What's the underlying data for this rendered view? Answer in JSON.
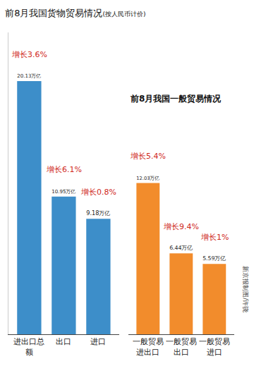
{
  "chart_data": [
    {
      "type": "bar",
      "title": "前8月我国货物贸易情况",
      "subtitle": "(按人民币计价)",
      "categories": [
        "进出口总额",
        "出口",
        "进口"
      ],
      "values": [
        20.13,
        10.95,
        9.18
      ],
      "value_labels": [
        "20.13万亿",
        "10.95万亿",
        "9.18万亿"
      ],
      "annotations": [
        "增长3.6%",
        "增长6.1%",
        "增长0.8%"
      ],
      "color": "#3d8ec9",
      "ylim": [
        0,
        24
      ],
      "data_labels": true,
      "tick_labels": "x",
      "grid": false
    },
    {
      "type": "bar",
      "title": "前8月我国一般贸易情况",
      "categories": [
        "一般贸易进出口",
        "一般贸易出口",
        "一般贸易进口"
      ],
      "values": [
        12.03,
        6.44,
        5.59
      ],
      "value_labels": [
        "12.03万亿",
        "6.44万亿",
        "5.59万亿"
      ],
      "annotations": [
        "增长5.4%",
        "增长9.4%",
        "增长1%"
      ],
      "color": "#f28c2c",
      "ylim": [
        0,
        24
      ],
      "data_labels": true,
      "tick_labels": "x",
      "grid": false
    }
  ],
  "credit": "新京报制图/许骁"
}
